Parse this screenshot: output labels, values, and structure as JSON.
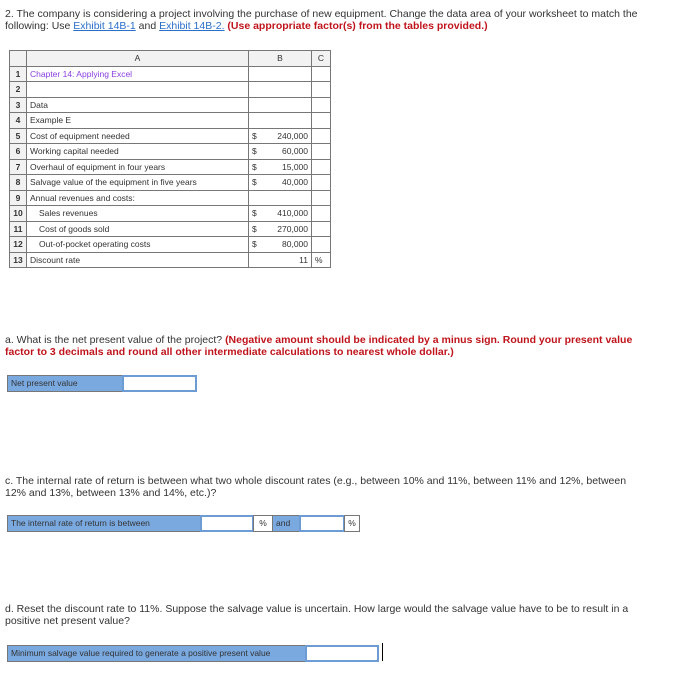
{
  "question": {
    "intro": "2. The company is considering a project involving the purchase of new equipment. Change the data area of your worksheet to match the following: Use",
    "link1": "Exhibit 14B-1",
    "and": "and",
    "link2": "Exhibit 14B-2.",
    "instruction": "(Use appropriate factor(s) from the tables provided.)"
  },
  "worksheet": {
    "columns": [
      "A",
      "B",
      "C"
    ],
    "rows": [
      {
        "n": "1",
        "a": "Chapter 14: Applying Excel",
        "dollar": "",
        "b": "",
        "c": ""
      },
      {
        "n": "2",
        "a": "",
        "dollar": "",
        "b": "",
        "c": ""
      },
      {
        "n": "3",
        "a": "Data",
        "dollar": "",
        "b": "",
        "c": ""
      },
      {
        "n": "4",
        "a": "Example E",
        "dollar": "",
        "b": "",
        "c": ""
      },
      {
        "n": "5",
        "a": "Cost of equipment needed",
        "dollar": "$",
        "b": "240,000",
        "c": ""
      },
      {
        "n": "6",
        "a": "Working capital needed",
        "dollar": "$",
        "b": "60,000",
        "c": ""
      },
      {
        "n": "7",
        "a": "Overhaul of equipment in four years",
        "dollar": "$",
        "b": "15,000",
        "c": ""
      },
      {
        "n": "8",
        "a": "Salvage value of the equipment in five years",
        "dollar": "$",
        "b": "40,000",
        "c": ""
      },
      {
        "n": "9",
        "a": "Annual revenues and costs:",
        "dollar": "",
        "b": "",
        "c": ""
      },
      {
        "n": "10",
        "a": "Sales revenues",
        "dollar": "$",
        "b": "410,000",
        "c": ""
      },
      {
        "n": "11",
        "a": "Cost of goods sold",
        "dollar": "$",
        "b": "270,000",
        "c": ""
      },
      {
        "n": "12",
        "a": "Out-of-pocket operating costs",
        "dollar": "$",
        "b": "80,000",
        "c": ""
      },
      {
        "n": "13",
        "a": "Discount rate",
        "dollar": "",
        "b": "11",
        "c": "%"
      }
    ]
  },
  "part_a": {
    "text": "a. What is the net present value of the project?",
    "instruction": "(Negative amount should be indicated by a minus sign. Round your present value factor to 3 decimals and round all other intermediate calculations to nearest whole dollar.)",
    "label": "Net present value",
    "value": ""
  },
  "part_c": {
    "text": "c. The internal rate of return is between what two whole discount rates (e.g., between 10% and 11%, between 11% and 12%, between 12% and 13%, between 13% and 14%, etc.)?",
    "label": "The internal rate of return is between",
    "value1": "",
    "unit": "%",
    "and": "and",
    "value2": ""
  },
  "part_d": {
    "text": "d. Reset the discount rate to 11%. Suppose the salvage value is uncertain. How large would the salvage value have to be to result in a positive net present value?",
    "label": "Minimum salvage value required to generate a positive present value",
    "value": ""
  }
}
